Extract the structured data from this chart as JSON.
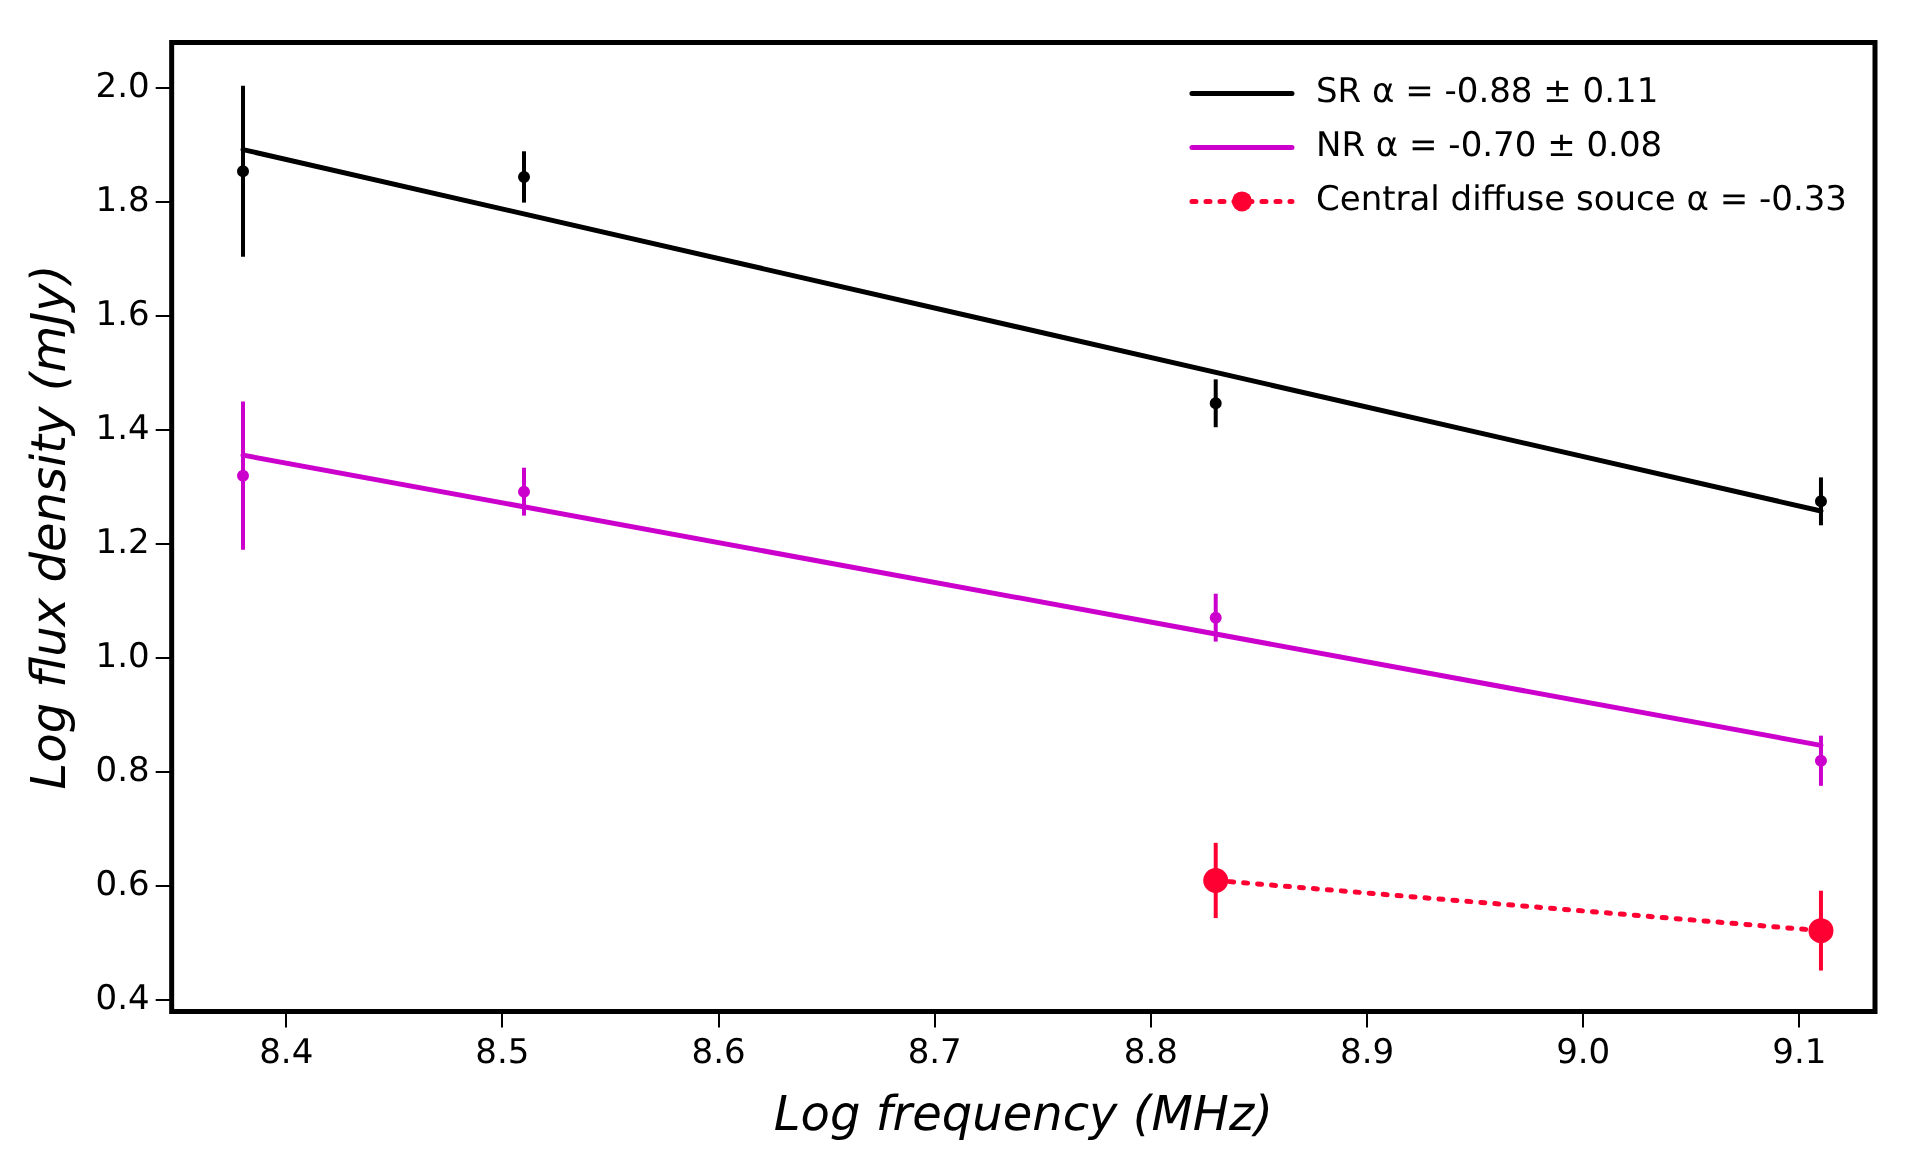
{
  "chart_data": {
    "type": "line",
    "xlabel": "Log frequency (MHz)",
    "ylabel": "Log flux density (mJy)",
    "xlim": [
      8.347,
      9.135
    ],
    "xticks": [
      {
        "value": 8.4,
        "label": "8.4"
      },
      {
        "value": 8.5,
        "label": "8.5"
      },
      {
        "value": 8.6,
        "label": "8.6"
      },
      {
        "value": 8.7,
        "label": "8.7"
      },
      {
        "value": 8.8,
        "label": "8.8"
      },
      {
        "value": 8.9,
        "label": "8.9"
      },
      {
        "value": 9.0,
        "label": "9.0"
      },
      {
        "value": 9.1,
        "label": "9.1"
      }
    ],
    "ylim": [
      0.38,
      2.08
    ],
    "yticks": [
      {
        "value": 0.4,
        "label": "0.4"
      },
      {
        "value": 0.6,
        "label": "0.6"
      },
      {
        "value": 0.8,
        "label": "0.8"
      },
      {
        "value": 1.0,
        "label": "1.0"
      },
      {
        "value": 1.2,
        "label": "1.2"
      },
      {
        "value": 1.4,
        "label": "1.4"
      },
      {
        "value": 1.6,
        "label": "1.6"
      },
      {
        "value": 1.8,
        "label": "1.8"
      },
      {
        "value": 2.0,
        "label": "2.0"
      }
    ],
    "grid": false,
    "legend": "top right",
    "series": [
      {
        "name": "SR α = -0.88 ± 0.11",
        "type": "line",
        "color": "#000000",
        "marker": "none",
        "line_style": "solid",
        "x": [
          8.38,
          9.11
        ],
        "values": [
          1.892,
          1.258
        ]
      },
      {
        "name": "NR α = -0.70 ± 0.08",
        "type": "line",
        "color": "#cc00cc",
        "marker": "none",
        "line_style": "solid",
        "x": [
          8.38,
          9.11
        ],
        "values": [
          1.356,
          0.847
        ]
      },
      {
        "name": "Central diffuse souce α = -0.33",
        "type": "line",
        "color": "#ff0033",
        "marker": "circle",
        "line_style": "dotted",
        "x": [
          8.83,
          9.11
        ],
        "values": [
          0.61,
          0.522
        ],
        "errors": [
          0.066,
          0.07
        ]
      },
      {
        "type": "scatter",
        "color": "#000000",
        "marker": "circle",
        "x": [
          8.38,
          8.51,
          8.83,
          9.11
        ],
        "values": [
          1.854,
          1.844,
          1.447,
          1.275
        ],
        "errors": [
          0.15,
          0.045,
          0.042,
          0.042
        ]
      },
      {
        "type": "scatter",
        "color": "#cc00cc",
        "marker": "circle",
        "x": [
          8.38,
          8.51,
          8.83,
          9.11
        ],
        "values": [
          1.32,
          1.292,
          1.071,
          0.82
        ],
        "errors": [
          0.13,
          0.042,
          0.042,
          0.044
        ]
      }
    ]
  }
}
